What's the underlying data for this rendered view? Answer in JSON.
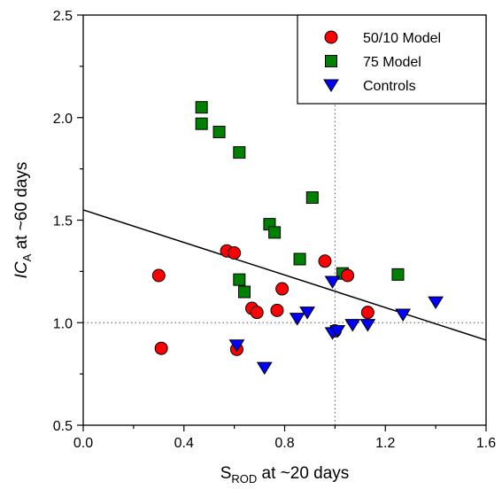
{
  "chart_data": {
    "type": "scatter",
    "xlim": [
      0.0,
      1.6
    ],
    "ylim": [
      0.5,
      2.5
    ],
    "x_ticks": [
      "0.0",
      "0.4",
      "0.8",
      "1.2",
      "1.6"
    ],
    "y_ticks": [
      "0.5",
      "1.0",
      "1.5",
      "2.0",
      "2.5"
    ],
    "xlabel": {
      "main": "S",
      "sub": "ROD",
      "rest": " at ~20 days"
    },
    "ylabel": {
      "main": "IC",
      "sub": "A",
      "rest": " at ~60 days"
    },
    "grid": false,
    "legend_position": "top-right",
    "reference_lines": {
      "x": 1.0,
      "y": 1.0,
      "style": "dotted"
    },
    "trend_line": {
      "x": [
        0.0,
        1.6
      ],
      "y": [
        1.55,
        0.915
      ]
    },
    "series": [
      {
        "name": "50/10 Model",
        "marker": "circle",
        "color": "#ff0000",
        "points": [
          [
            0.3,
            1.23
          ],
          [
            0.31,
            0.875
          ],
          [
            0.57,
            1.35
          ],
          [
            0.6,
            1.34
          ],
          [
            0.61,
            0.87
          ],
          [
            0.67,
            1.07
          ],
          [
            0.69,
            1.05
          ],
          [
            0.77,
            1.06
          ],
          [
            0.79,
            1.165
          ],
          [
            0.96,
            1.3
          ],
          [
            1.0,
            0.96
          ],
          [
            1.05,
            1.23
          ],
          [
            1.13,
            1.05
          ]
        ]
      },
      {
        "name": "75 Model",
        "marker": "square",
        "color": "#008000",
        "points": [
          [
            0.47,
            2.05
          ],
          [
            0.47,
            1.97
          ],
          [
            0.54,
            1.93
          ],
          [
            0.62,
            1.83
          ],
          [
            0.62,
            1.21
          ],
          [
            0.64,
            1.15
          ],
          [
            0.74,
            1.48
          ],
          [
            0.76,
            1.44
          ],
          [
            0.86,
            1.31
          ],
          [
            0.91,
            1.61
          ],
          [
            1.03,
            1.24
          ],
          [
            1.25,
            1.235
          ]
        ]
      },
      {
        "name": "Controls",
        "marker": "triangle-down",
        "color": "#0000ff",
        "points": [
          [
            0.61,
            0.89
          ],
          [
            0.72,
            0.78
          ],
          [
            0.85,
            1.02
          ],
          [
            0.89,
            1.05
          ],
          [
            0.99,
            1.2
          ],
          [
            0.99,
            0.95
          ],
          [
            1.01,
            0.96
          ],
          [
            1.07,
            0.99
          ],
          [
            1.13,
            0.99
          ],
          [
            1.27,
            1.04
          ],
          [
            1.4,
            1.1
          ]
        ]
      }
    ]
  }
}
